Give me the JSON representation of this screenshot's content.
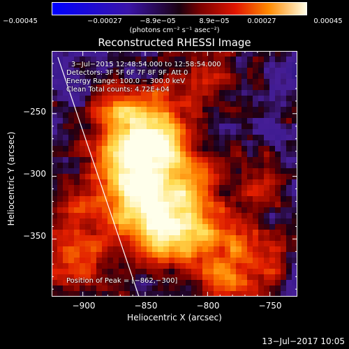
{
  "chart_data": {
    "type": "heatmap",
    "title": "Reconstructed RHESSI Image",
    "xlabel": "Heliocentric X (arcsec)",
    "ylabel": "Heliocentric Y (arcsec)",
    "xlim": [
      -925,
      -728
    ],
    "ylim": [
      -396,
      -200
    ],
    "x_ticks": [
      "−900",
      "−850",
      "−800",
      "−750"
    ],
    "y_ticks": [
      "−250",
      "−300",
      "−350"
    ],
    "colorbar": {
      "ticks": [
        "−0.00045",
        "−0.00027",
        "−8.9e−05",
        "8.9e−05",
        "0.00027",
        "0.00045"
      ],
      "units": "(photons cm⁻² s⁻¹ asec⁻²)",
      "range": [
        -0.00045,
        0.00045
      ]
    },
    "peak_position": [
      -862,
      -300
    ],
    "annotations": [
      "3−Jul−2015 12:48:54.000 to 12:58:54.000",
      "Detectors: 3F 5F 6F 7F 8F 9F, Att 0",
      "Energy Range: 100.0 − 300.0 keV",
      "Clean     Total counts: 4.72E+04"
    ],
    "peak_label": "Position of Peak = [−862,−300]"
  },
  "footer": {
    "date": "13−Jul−2017 10:05"
  }
}
